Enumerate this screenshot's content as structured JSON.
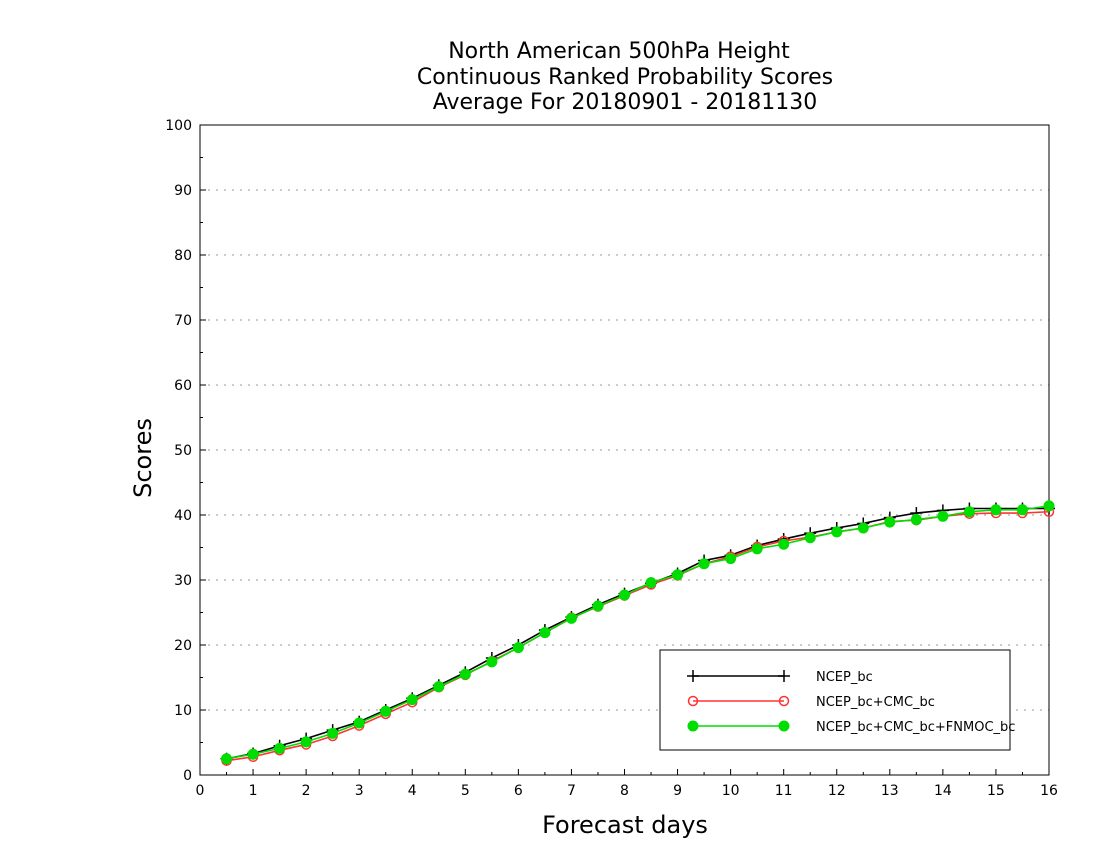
{
  "chart_data": {
    "type": "line",
    "title_lines": [
      "North American 500hPa Height",
      "Continuous Ranked Probability Scores",
      "Average For 20180901 - 20181130"
    ],
    "xlabel": "Forecast days",
    "ylabel": "Scores",
    "xlim": [
      0,
      16
    ],
    "ylim": [
      0,
      100
    ],
    "xticks": [
      "0",
      "1",
      "2",
      "3",
      "4",
      "5",
      "6",
      "7",
      "8",
      "9",
      "10",
      "11",
      "12",
      "13",
      "14",
      "15",
      "16"
    ],
    "yticks": [
      "0",
      "10",
      "20",
      "30",
      "40",
      "50",
      "60",
      "70",
      "80",
      "90",
      "100"
    ],
    "grid": "horizontal-dotted",
    "legend_position": "bottom-right",
    "x": [
      0.5,
      1,
      1.5,
      2,
      2.5,
      3,
      3.5,
      4,
      4.5,
      5,
      5.5,
      6,
      6.5,
      7,
      7.5,
      8,
      8.5,
      9,
      9.5,
      10,
      10.5,
      11,
      11.5,
      12,
      12.5,
      13,
      13.5,
      14,
      14.5,
      15,
      15.5,
      16
    ],
    "series": [
      {
        "name": "NCEP_bc",
        "color": "#000000",
        "marker": "plus",
        "values": [
          2.5,
          3.3,
          4.5,
          5.6,
          6.9,
          8.2,
          10.0,
          11.8,
          13.8,
          15.8,
          18.0,
          20.0,
          22.3,
          24.3,
          26.2,
          27.9,
          29.5,
          31.0,
          33.0,
          33.8,
          35.3,
          36.3,
          37.2,
          38.0,
          38.7,
          39.6,
          40.3,
          40.7,
          41.0,
          41.0,
          41.0,
          41.0
        ]
      },
      {
        "name": "NCEP_bc+CMC_bc",
        "color": "#ff3333",
        "marker": "open-circle",
        "values": [
          2.2,
          2.8,
          3.8,
          4.7,
          6.0,
          7.6,
          9.4,
          11.2,
          13.5,
          15.4,
          17.5,
          19.6,
          21.9,
          24.2,
          25.9,
          27.6,
          29.3,
          30.7,
          32.5,
          33.6,
          35.1,
          36.0,
          36.6,
          37.4,
          38.0,
          39.0,
          39.2,
          39.8,
          40.2,
          40.3,
          40.3,
          40.5
        ]
      },
      {
        "name": "NCEP_bc+CMC_bc+FNMOC_bc",
        "color": "#00dd00",
        "marker": "filled-circle",
        "values": [
          2.5,
          3.2,
          4.1,
          5.1,
          6.4,
          8.0,
          9.8,
          11.6,
          13.6,
          15.5,
          17.4,
          19.6,
          21.9,
          24.1,
          26.0,
          27.7,
          29.6,
          30.8,
          32.5,
          33.3,
          34.8,
          35.5,
          36.5,
          37.4,
          38.0,
          38.9,
          39.3,
          39.8,
          40.5,
          40.8,
          40.8,
          41.4
        ]
      }
    ]
  }
}
